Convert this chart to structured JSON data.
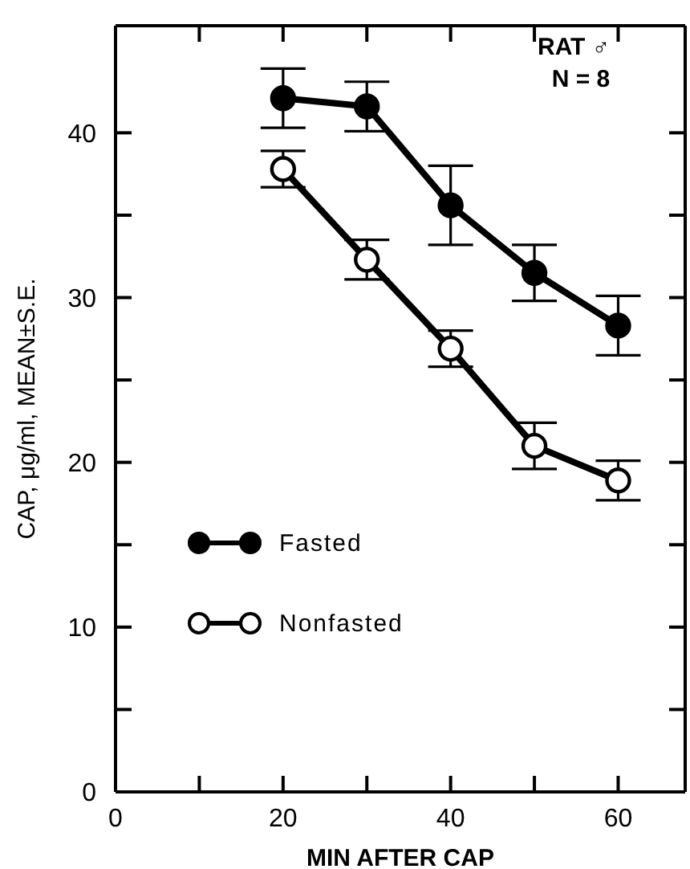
{
  "chart_data": {
    "type": "line",
    "xlabel": "MIN AFTER CAP",
    "ylabel": "CAP, μg/ml, MEAN±S.E.",
    "x": [
      20,
      30,
      40,
      50,
      60
    ],
    "series": [
      {
        "name": "Fasted",
        "color": "#000000",
        "values": [
          42.1,
          41.6,
          35.6,
          31.5,
          28.3
        ],
        "errors": [
          1.8,
          1.5,
          2.4,
          1.7,
          1.8
        ]
      },
      {
        "name": "Nonfasted",
        "color": "#000000",
        "values": [
          37.8,
          32.3,
          26.9,
          21.0,
          18.9
        ],
        "errors": [
          1.1,
          1.2,
          1.1,
          1.4,
          1.2
        ]
      }
    ],
    "xlim": [
      0,
      68
    ],
    "xticks": [
      0,
      {
        "value": 10,
        "label": null
      },
      20,
      {
        "value": 30,
        "label": null
      },
      40,
      {
        "value": 50,
        "label": null
      },
      60
    ],
    "ylim": [
      0,
      46.5
    ],
    "yticks": [
      0,
      {
        "value": 5,
        "label": null
      },
      10,
      {
        "value": 15,
        "label": null
      },
      20,
      {
        "value": 25,
        "label": null
      },
      30,
      {
        "value": 35,
        "label": null
      },
      40
    ],
    "annotations": [
      "RAT ♂",
      "N = 8"
    ],
    "legend": "left",
    "marker": "circle",
    "line_style": "solid",
    "grid": false
  }
}
